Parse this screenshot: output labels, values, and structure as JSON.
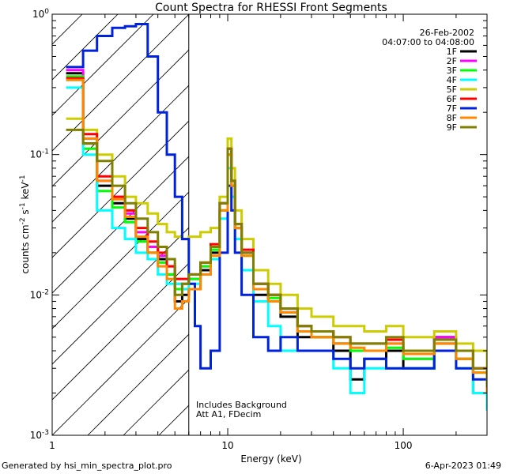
{
  "chart_data": {
    "type": "line",
    "title": "Count Spectra for RHESSI Front Segments",
    "date": "26-Feb-2002",
    "time_range": "04:07:00 to 04:08:00",
    "xlabel": "Energy (keV)",
    "ylabel_parts": {
      "base": "counts cm",
      "e1": "-2",
      "mid": " s",
      "e2": "-1",
      "mid2": " keV",
      "e3": "-1"
    },
    "xscale": "log",
    "yscale": "log",
    "xlim": [
      1,
      300
    ],
    "ylim": [
      0.001,
      1.0
    ],
    "x_ticks": [
      {
        "value": 1,
        "label": "1"
      },
      {
        "value": 10,
        "label": "10"
      },
      {
        "value": 100,
        "label": "100"
      }
    ],
    "y_ticks": [
      {
        "value": 1,
        "base": "10",
        "exp": "0"
      },
      {
        "value": 0.1,
        "base": "10",
        "exp": "-1"
      },
      {
        "value": 0.01,
        "base": "10",
        "exp": "-2"
      },
      {
        "value": 0.001,
        "base": "10",
        "exp": "-3"
      }
    ],
    "hatched_region": [
      1,
      6
    ],
    "annotations": [
      "Includes Background",
      "Att A1, FDecim"
    ],
    "legend_position": "top-right",
    "series": [
      {
        "name": "1F",
        "color": "#000000",
        "values": [
          [
            1.2,
            0.38
          ],
          [
            1.5,
            0.12
          ],
          [
            1.8,
            0.06
          ],
          [
            2.2,
            0.045
          ],
          [
            2.6,
            0.035
          ],
          [
            3,
            0.025
          ],
          [
            3.5,
            0.02
          ],
          [
            4,
            0.018
          ],
          [
            4.5,
            0.014
          ],
          [
            5,
            0.009
          ],
          [
            5.5,
            0.01
          ],
          [
            6,
            0.011
          ],
          [
            7,
            0.015
          ],
          [
            8,
            0.02
          ],
          [
            9,
            0.04
          ],
          [
            10,
            0.1
          ],
          [
            10.5,
            0.06
          ],
          [
            11,
            0.03
          ],
          [
            12,
            0.02
          ],
          [
            14,
            0.01
          ],
          [
            17,
            0.009
          ],
          [
            20,
            0.007
          ],
          [
            25,
            0.005
          ],
          [
            30,
            0.005
          ],
          [
            40,
            0.004
          ],
          [
            50,
            0.0025
          ],
          [
            60,
            0.0035
          ],
          [
            80,
            0.004
          ],
          [
            100,
            0.003
          ],
          [
            150,
            0.005
          ],
          [
            200,
            0.0035
          ],
          [
            250,
            0.002
          ],
          [
            300,
            0.002
          ]
        ]
      },
      {
        "name": "2F",
        "color": "#ff00ff",
        "values": [
          [
            1.2,
            0.4
          ],
          [
            1.5,
            0.13
          ],
          [
            1.8,
            0.065
          ],
          [
            2.2,
            0.05
          ],
          [
            2.6,
            0.038
          ],
          [
            3,
            0.028
          ],
          [
            3.5,
            0.022
          ],
          [
            4,
            0.019
          ],
          [
            4.5,
            0.016
          ],
          [
            5,
            0.012
          ],
          [
            5.5,
            0.012
          ],
          [
            6,
            0.013
          ],
          [
            7,
            0.016
          ],
          [
            8,
            0.022
          ],
          [
            9,
            0.045
          ],
          [
            10,
            0.11
          ],
          [
            10.5,
            0.065
          ],
          [
            11,
            0.032
          ],
          [
            12,
            0.02
          ],
          [
            14,
            0.012
          ],
          [
            17,
            0.01
          ],
          [
            20,
            0.008
          ],
          [
            25,
            0.006
          ],
          [
            30,
            0.0055
          ],
          [
            40,
            0.0045
          ],
          [
            50,
            0.004
          ],
          [
            60,
            0.004
          ],
          [
            80,
            0.0045
          ],
          [
            100,
            0.0035
          ],
          [
            150,
            0.005
          ],
          [
            200,
            0.004
          ],
          [
            250,
            0.003
          ],
          [
            300,
            0.002
          ]
        ]
      },
      {
        "name": "3F",
        "color": "#00ff00",
        "values": [
          [
            1.2,
            0.36
          ],
          [
            1.5,
            0.11
          ],
          [
            1.8,
            0.055
          ],
          [
            2.2,
            0.042
          ],
          [
            2.6,
            0.033
          ],
          [
            3,
            0.024
          ],
          [
            3.5,
            0.02
          ],
          [
            4,
            0.017
          ],
          [
            4.5,
            0.014
          ],
          [
            5,
            0.011
          ],
          [
            5.5,
            0.012
          ],
          [
            6,
            0.013
          ],
          [
            7,
            0.016
          ],
          [
            8,
            0.021
          ],
          [
            9,
            0.04
          ],
          [
            10,
            0.1
          ],
          [
            10.5,
            0.06
          ],
          [
            11,
            0.03
          ],
          [
            12,
            0.019
          ],
          [
            14,
            0.011
          ],
          [
            17,
            0.0095
          ],
          [
            20,
            0.0075
          ],
          [
            25,
            0.0055
          ],
          [
            30,
            0.005
          ],
          [
            40,
            0.0045
          ],
          [
            50,
            0.004
          ],
          [
            60,
            0.004
          ],
          [
            80,
            0.0042
          ],
          [
            100,
            0.0035
          ],
          [
            150,
            0.0045
          ],
          [
            200,
            0.0035
          ],
          [
            250,
            0.0028
          ],
          [
            300,
            0.002
          ]
        ]
      },
      {
        "name": "4F",
        "color": "#00ffff",
        "values": [
          [
            1.2,
            0.3
          ],
          [
            1.5,
            0.1
          ],
          [
            1.8,
            0.04
          ],
          [
            2.2,
            0.03
          ],
          [
            2.6,
            0.025
          ],
          [
            3,
            0.02
          ],
          [
            3.5,
            0.018
          ],
          [
            4,
            0.014
          ],
          [
            4.5,
            0.012
          ],
          [
            5,
            0.012
          ],
          [
            5.5,
            0.011
          ],
          [
            6,
            0.012
          ],
          [
            7,
            0.014
          ],
          [
            8,
            0.018
          ],
          [
            9,
            0.035
          ],
          [
            10,
            0.08
          ],
          [
            10.5,
            0.05
          ],
          [
            11,
            0.025
          ],
          [
            12,
            0.015
          ],
          [
            14,
            0.009
          ],
          [
            17,
            0.006
          ],
          [
            20,
            0.004
          ],
          [
            25,
            0.004
          ],
          [
            30,
            0.004
          ],
          [
            40,
            0.003
          ],
          [
            50,
            0.002
          ],
          [
            60,
            0.003
          ],
          [
            80,
            0.003
          ],
          [
            100,
            0.003
          ],
          [
            150,
            0.004
          ],
          [
            200,
            0.003
          ],
          [
            250,
            0.002
          ],
          [
            300,
            0.0015
          ]
        ]
      },
      {
        "name": "5F",
        "color": "#cccc00",
        "values": [
          [
            1.2,
            0.18
          ],
          [
            1.5,
            0.15
          ],
          [
            1.8,
            0.1
          ],
          [
            2.2,
            0.07
          ],
          [
            2.6,
            0.05
          ],
          [
            3,
            0.045
          ],
          [
            3.5,
            0.038
          ],
          [
            4,
            0.032
          ],
          [
            4.5,
            0.028
          ],
          [
            5,
            0.026
          ],
          [
            5.5,
            0.025
          ],
          [
            6,
            0.026
          ],
          [
            7,
            0.028
          ],
          [
            8,
            0.03
          ],
          [
            9,
            0.05
          ],
          [
            10,
            0.13
          ],
          [
            10.5,
            0.08
          ],
          [
            11,
            0.04
          ],
          [
            12,
            0.025
          ],
          [
            14,
            0.015
          ],
          [
            17,
            0.012
          ],
          [
            20,
            0.01
          ],
          [
            25,
            0.008
          ],
          [
            30,
            0.007
          ],
          [
            40,
            0.006
          ],
          [
            50,
            0.006
          ],
          [
            60,
            0.0055
          ],
          [
            80,
            0.006
          ],
          [
            100,
            0.005
          ],
          [
            150,
            0.0055
          ],
          [
            200,
            0.0045
          ],
          [
            250,
            0.004
          ],
          [
            300,
            0.003
          ]
        ]
      },
      {
        "name": "6F",
        "color": "#ff0000",
        "values": [
          [
            1.2,
            0.35
          ],
          [
            1.5,
            0.14
          ],
          [
            1.8,
            0.07
          ],
          [
            2.2,
            0.05
          ],
          [
            2.6,
            0.04
          ],
          [
            3,
            0.03
          ],
          [
            3.5,
            0.024
          ],
          [
            4,
            0.02
          ],
          [
            4.5,
            0.016
          ],
          [
            5,
            0.013
          ],
          [
            5.5,
            0.013
          ],
          [
            6,
            0.014
          ],
          [
            7,
            0.017
          ],
          [
            8,
            0.023
          ],
          [
            9,
            0.045
          ],
          [
            10,
            0.11
          ],
          [
            10.5,
            0.065
          ],
          [
            11,
            0.032
          ],
          [
            12,
            0.021
          ],
          [
            14,
            0.012
          ],
          [
            17,
            0.01
          ],
          [
            20,
            0.008
          ],
          [
            25,
            0.006
          ],
          [
            30,
            0.0055
          ],
          [
            40,
            0.005
          ],
          [
            50,
            0.0045
          ],
          [
            60,
            0.0045
          ],
          [
            80,
            0.0048
          ],
          [
            100,
            0.004
          ],
          [
            150,
            0.0045
          ],
          [
            200,
            0.004
          ],
          [
            250,
            0.003
          ],
          [
            300,
            0.002
          ]
        ]
      },
      {
        "name": "7F",
        "color": "#0022dd",
        "values": [
          [
            1.2,
            0.42
          ],
          [
            1.5,
            0.55
          ],
          [
            1.8,
            0.7
          ],
          [
            2.2,
            0.8
          ],
          [
            2.6,
            0.82
          ],
          [
            3,
            0.85
          ],
          [
            3.5,
            0.5
          ],
          [
            4,
            0.2
          ],
          [
            4.5,
            0.1
          ],
          [
            5,
            0.05
          ],
          [
            5.5,
            0.025
          ],
          [
            6,
            0.012
          ],
          [
            6.5,
            0.006
          ],
          [
            7,
            0.003
          ],
          [
            8,
            0.004
          ],
          [
            9,
            0.02
          ],
          [
            10,
            0.06
          ],
          [
            10.5,
            0.04
          ],
          [
            11,
            0.02
          ],
          [
            12,
            0.01
          ],
          [
            14,
            0.005
          ],
          [
            17,
            0.004
          ],
          [
            20,
            0.005
          ],
          [
            25,
            0.004
          ],
          [
            30,
            0.004
          ],
          [
            40,
            0.0035
          ],
          [
            50,
            0.003
          ],
          [
            60,
            0.0035
          ],
          [
            80,
            0.003
          ],
          [
            100,
            0.003
          ],
          [
            150,
            0.004
          ],
          [
            200,
            0.003
          ],
          [
            250,
            0.0025
          ],
          [
            300,
            0.002
          ]
        ]
      },
      {
        "name": "8F",
        "color": "#ff8800",
        "values": [
          [
            1.2,
            0.34
          ],
          [
            1.5,
            0.13
          ],
          [
            1.8,
            0.065
          ],
          [
            2.2,
            0.048
          ],
          [
            2.6,
            0.036
          ],
          [
            3,
            0.026
          ],
          [
            3.5,
            0.02
          ],
          [
            4,
            0.016
          ],
          [
            4.5,
            0.013
          ],
          [
            5,
            0.008
          ],
          [
            5.5,
            0.009
          ],
          [
            6,
            0.011
          ],
          [
            7,
            0.014
          ],
          [
            8,
            0.019
          ],
          [
            9,
            0.04
          ],
          [
            10,
            0.1
          ],
          [
            10.5,
            0.06
          ],
          [
            11,
            0.03
          ],
          [
            12,
            0.019
          ],
          [
            14,
            0.011
          ],
          [
            17,
            0.009
          ],
          [
            20,
            0.0075
          ],
          [
            25,
            0.0055
          ],
          [
            30,
            0.005
          ],
          [
            40,
            0.0045
          ],
          [
            50,
            0.0042
          ],
          [
            60,
            0.004
          ],
          [
            80,
            0.0045
          ],
          [
            100,
            0.0038
          ],
          [
            150,
            0.0045
          ],
          [
            200,
            0.0035
          ],
          [
            250,
            0.0028
          ],
          [
            300,
            0.002
          ]
        ]
      },
      {
        "name": "9F",
        "color": "#808000",
        "values": [
          [
            1.2,
            0.15
          ],
          [
            1.5,
            0.12
          ],
          [
            1.8,
            0.09
          ],
          [
            2.2,
            0.06
          ],
          [
            2.6,
            0.045
          ],
          [
            3,
            0.035
          ],
          [
            3.5,
            0.028
          ],
          [
            4,
            0.022
          ],
          [
            4.5,
            0.018
          ],
          [
            5,
            0.01
          ],
          [
            5.5,
            0.012
          ],
          [
            6,
            0.014
          ],
          [
            7,
            0.017
          ],
          [
            8,
            0.022
          ],
          [
            9,
            0.045
          ],
          [
            10,
            0.11
          ],
          [
            10.5,
            0.065
          ],
          [
            11,
            0.032
          ],
          [
            12,
            0.02
          ],
          [
            14,
            0.012
          ],
          [
            17,
            0.01
          ],
          [
            20,
            0.008
          ],
          [
            25,
            0.006
          ],
          [
            30,
            0.0055
          ],
          [
            40,
            0.005
          ],
          [
            50,
            0.0045
          ],
          [
            60,
            0.0045
          ],
          [
            80,
            0.005
          ],
          [
            100,
            0.004
          ],
          [
            150,
            0.0048
          ],
          [
            200,
            0.004
          ],
          [
            250,
            0.003
          ],
          [
            300,
            0.0022
          ]
        ]
      }
    ]
  },
  "footer": {
    "generated": "Generated by hsi_min_spectra_plot.pro",
    "timestamp": "6-Apr-2023 01:49"
  }
}
